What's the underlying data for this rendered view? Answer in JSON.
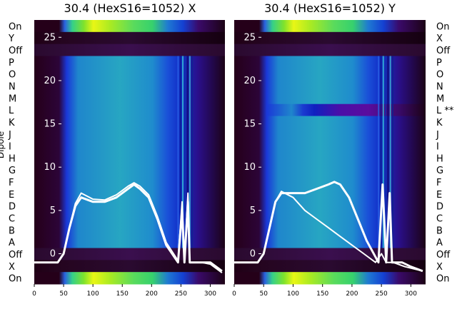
{
  "chart_data": [
    {
      "type": "heatmap",
      "title": "30.4 (HexS16=1052) X",
      "row_labels": [
        "On",
        "Y",
        "Off",
        "P",
        "O",
        "N",
        "M",
        "L",
        "K",
        "J",
        "I",
        "H",
        "G",
        "F",
        "E",
        "D",
        "C",
        "B",
        "A",
        "Off",
        "X",
        "On"
      ],
      "ylabel": "Dipole",
      "xlim": [
        0,
        325
      ],
      "xticks": [
        0,
        50,
        100,
        150,
        200,
        250,
        300
      ],
      "ylim": [
        -3.5,
        27
      ],
      "yticks": [
        0,
        5,
        10,
        15,
        20,
        25
      ],
      "grid": false,
      "series": [
        {
          "values": [
            [
              0,
              -1
            ],
            [
              40,
              -1
            ],
            [
              50,
              0
            ],
            [
              60,
              3
            ],
            [
              70,
              5.5
            ],
            [
              80,
              6.5
            ],
            [
              100,
              6
            ],
            [
              120,
              6
            ],
            [
              140,
              6.5
            ],
            [
              160,
              7.5
            ],
            [
              170,
              8
            ],
            [
              180,
              7.5
            ],
            [
              195,
              6.5
            ],
            [
              210,
              4
            ],
            [
              225,
              1
            ],
            [
              245,
              -1
            ],
            [
              252,
              5
            ],
            [
              256,
              -1
            ],
            [
              262,
              6
            ],
            [
              265,
              -1
            ],
            [
              270,
              -1
            ],
            [
              285,
              -1
            ],
            [
              300,
              -1
            ],
            [
              320,
              -2
            ]
          ]
        },
        {
          "values": [
            [
              0,
              -1
            ],
            [
              40,
              -1
            ],
            [
              50,
              0
            ],
            [
              60,
              3
            ],
            [
              70,
              5.8
            ],
            [
              80,
              7
            ],
            [
              100,
              6.3
            ],
            [
              120,
              6.2
            ],
            [
              140,
              6.8
            ],
            [
              160,
              7.8
            ],
            [
              170,
              8.2
            ],
            [
              180,
              7.8
            ],
            [
              195,
              6.8
            ],
            [
              210,
              4.3
            ],
            [
              225,
              1.3
            ],
            [
              245,
              -0.8
            ],
            [
              252,
              6
            ],
            [
              256,
              -1
            ],
            [
              262,
              7
            ],
            [
              265,
              -1
            ],
            [
              270,
              -1
            ],
            [
              285,
              -1
            ],
            [
              300,
              -1.2
            ],
            [
              320,
              -2.2
            ]
          ]
        }
      ]
    },
    {
      "type": "heatmap",
      "title": "30.4 (HexS16=1052) Y",
      "row_labels": [
        "On",
        "X",
        "Off",
        "P",
        "O",
        "N",
        "M",
        "L **",
        "K",
        "J",
        "I",
        "H",
        "G",
        "F",
        "E",
        "D",
        "C",
        "B",
        "A",
        "Off",
        "X",
        "On"
      ],
      "xlim": [
        0,
        325
      ],
      "xticks": [
        0,
        50,
        100,
        150,
        200,
        250,
        300
      ],
      "ylim": [
        -3.5,
        27
      ],
      "yticks": [
        0,
        5,
        10,
        15,
        20,
        25
      ],
      "grid": false,
      "series": [
        {
          "values": [
            [
              0,
              -1
            ],
            [
              40,
              -1
            ],
            [
              50,
              0
            ],
            [
              60,
              3
            ],
            [
              70,
              6
            ],
            [
              80,
              7
            ],
            [
              100,
              7
            ],
            [
              120,
              7
            ],
            [
              140,
              7.5
            ],
            [
              160,
              8
            ],
            [
              170,
              8.3
            ],
            [
              180,
              8
            ],
            [
              195,
              6.5
            ],
            [
              210,
              4
            ],
            [
              225,
              1.5
            ],
            [
              245,
              -1
            ],
            [
              252,
              8
            ],
            [
              258,
              -1
            ],
            [
              264,
              7
            ],
            [
              268,
              -1
            ],
            [
              285,
              -1
            ],
            [
              300,
              -1.5
            ],
            [
              320,
              -2
            ]
          ]
        },
        {
          "values": [
            [
              0,
              -1
            ],
            [
              40,
              -1
            ],
            [
              50,
              0
            ],
            [
              60,
              3
            ],
            [
              70,
              6
            ],
            [
              80,
              7.2
            ],
            [
              100,
              6.5
            ],
            [
              120,
              5
            ],
            [
              140,
              4
            ],
            [
              160,
              3
            ],
            [
              180,
              2
            ],
            [
              200,
              1
            ],
            [
              220,
              0
            ],
            [
              240,
              -1
            ],
            [
              250,
              0
            ],
            [
              258,
              -1
            ],
            [
              270,
              -1
            ],
            [
              290,
              -1.5
            ],
            [
              320,
              -2
            ]
          ]
        }
      ]
    }
  ]
}
